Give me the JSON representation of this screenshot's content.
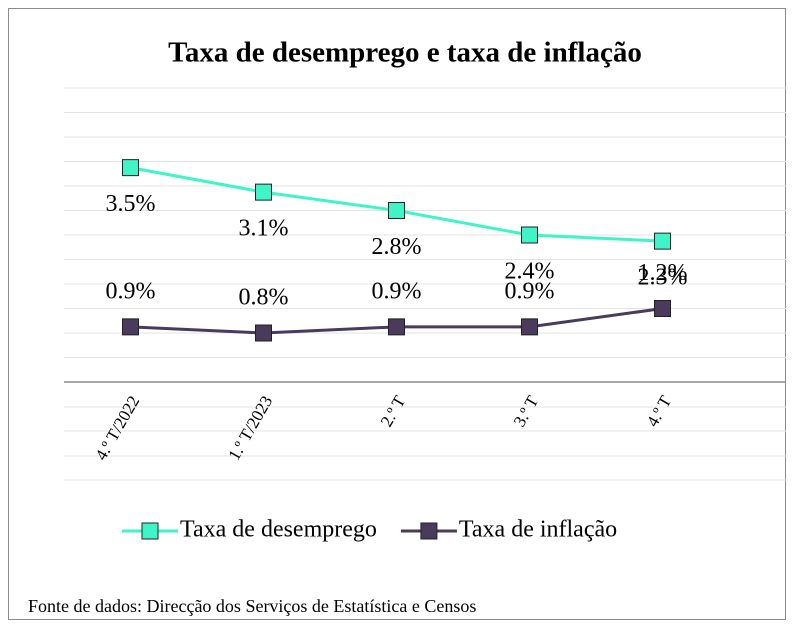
{
  "chart_data": {
    "type": "line",
    "title": "Taxa de desemprego e taxa de inflação",
    "categories": [
      "4.º T/2022",
      "1.º T/2023",
      "2.º T",
      "3.º T",
      "4.º T"
    ],
    "series": [
      {
        "name": "Taxa de desemprego",
        "color": "#3ff5c8",
        "values": [
          3.5,
          3.1,
          2.8,
          2.4,
          2.3
        ],
        "value_labels": [
          "3.5%",
          "3.1%",
          "2.8%",
          "2.4%",
          "2.3%"
        ]
      },
      {
        "name": "Taxa de inflação",
        "color": "#4a3a5c",
        "values": [
          0.9,
          0.8,
          0.9,
          0.9,
          1.2
        ],
        "value_labels": [
          "0.9%",
          "0.8%",
          "0.9%",
          "0.9%",
          "1.2%"
        ]
      }
    ],
    "ylim": [
      0,
      4.8
    ],
    "yticks": [
      0,
      0.4,
      0.8,
      1.2,
      1.6,
      2,
      2.4,
      2.8,
      3.2,
      3.6,
      4,
      4.4,
      4.8
    ],
    "grid": true,
    "legend": "bottom",
    "source": "Fonte de dados: Direcção dos Serviços de Estatística e Censos"
  }
}
